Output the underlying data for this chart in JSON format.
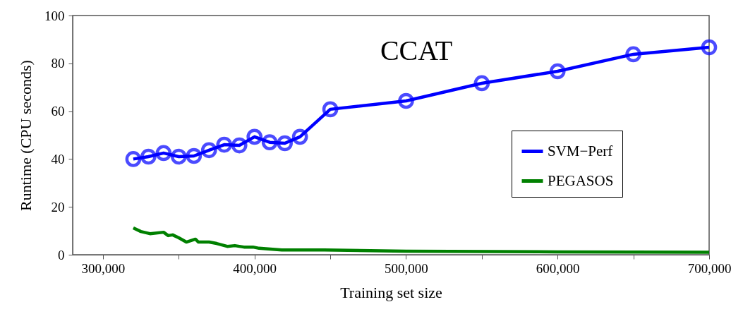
{
  "chart_data": {
    "type": "line",
    "title": "CCAT",
    "xlabel": "Training set size",
    "ylabel": "Runtime (CPU seconds)",
    "xlim": [
      280000,
      700000
    ],
    "ylim": [
      0,
      100
    ],
    "xticks": [
      {
        "value": 300000,
        "label": "300,000"
      },
      {
        "value": 350000,
        "label": null
      },
      {
        "value": 400000,
        "label": "400,000"
      },
      {
        "value": 450000,
        "label": null
      },
      {
        "value": 500000,
        "label": "500,000"
      },
      {
        "value": 550000,
        "label": null
      },
      {
        "value": 600000,
        "label": "600,000"
      },
      {
        "value": 650000,
        "label": null
      },
      {
        "value": 700000,
        "label": "700,000"
      }
    ],
    "yticks": [
      0,
      20,
      40,
      60,
      80,
      100
    ],
    "grid": false,
    "legend": "right",
    "line_style": "solid",
    "series": [
      {
        "name": "SVM−Perf",
        "color": "#0000ff",
        "marker": "circle",
        "x": [
          320000,
          330000,
          340000,
          350000,
          360000,
          370000,
          380000,
          390000,
          400000,
          410000,
          420000,
          430000,
          450000,
          500000,
          550000,
          600000,
          650000,
          700000
        ],
        "values": [
          40,
          41,
          42.5,
          41,
          41.3,
          43.7,
          46,
          45.7,
          49.3,
          47,
          46.6,
          49.3,
          60.8,
          64.3,
          71.7,
          76.7,
          83.8,
          86.7
        ]
      },
      {
        "name": "PEGASOS",
        "color": "#008000",
        "marker": "none",
        "x": [
          320000,
          325000,
          331000,
          340000,
          343000,
          346000,
          350000,
          355000,
          361000,
          363000,
          370000,
          375000,
          382000,
          387000,
          393000,
          399000,
          403000,
          409000,
          418000,
          446000,
          500000,
          600000,
          700000
        ],
        "values": [
          11.2,
          9.7,
          8.8,
          9.4,
          8,
          8.3,
          7.1,
          5.3,
          6.5,
          5.3,
          5.3,
          4.7,
          3.5,
          3.8,
          3.2,
          3.2,
          2.7,
          2.4,
          2,
          2,
          1.5,
          1.2,
          1
        ]
      }
    ]
  }
}
